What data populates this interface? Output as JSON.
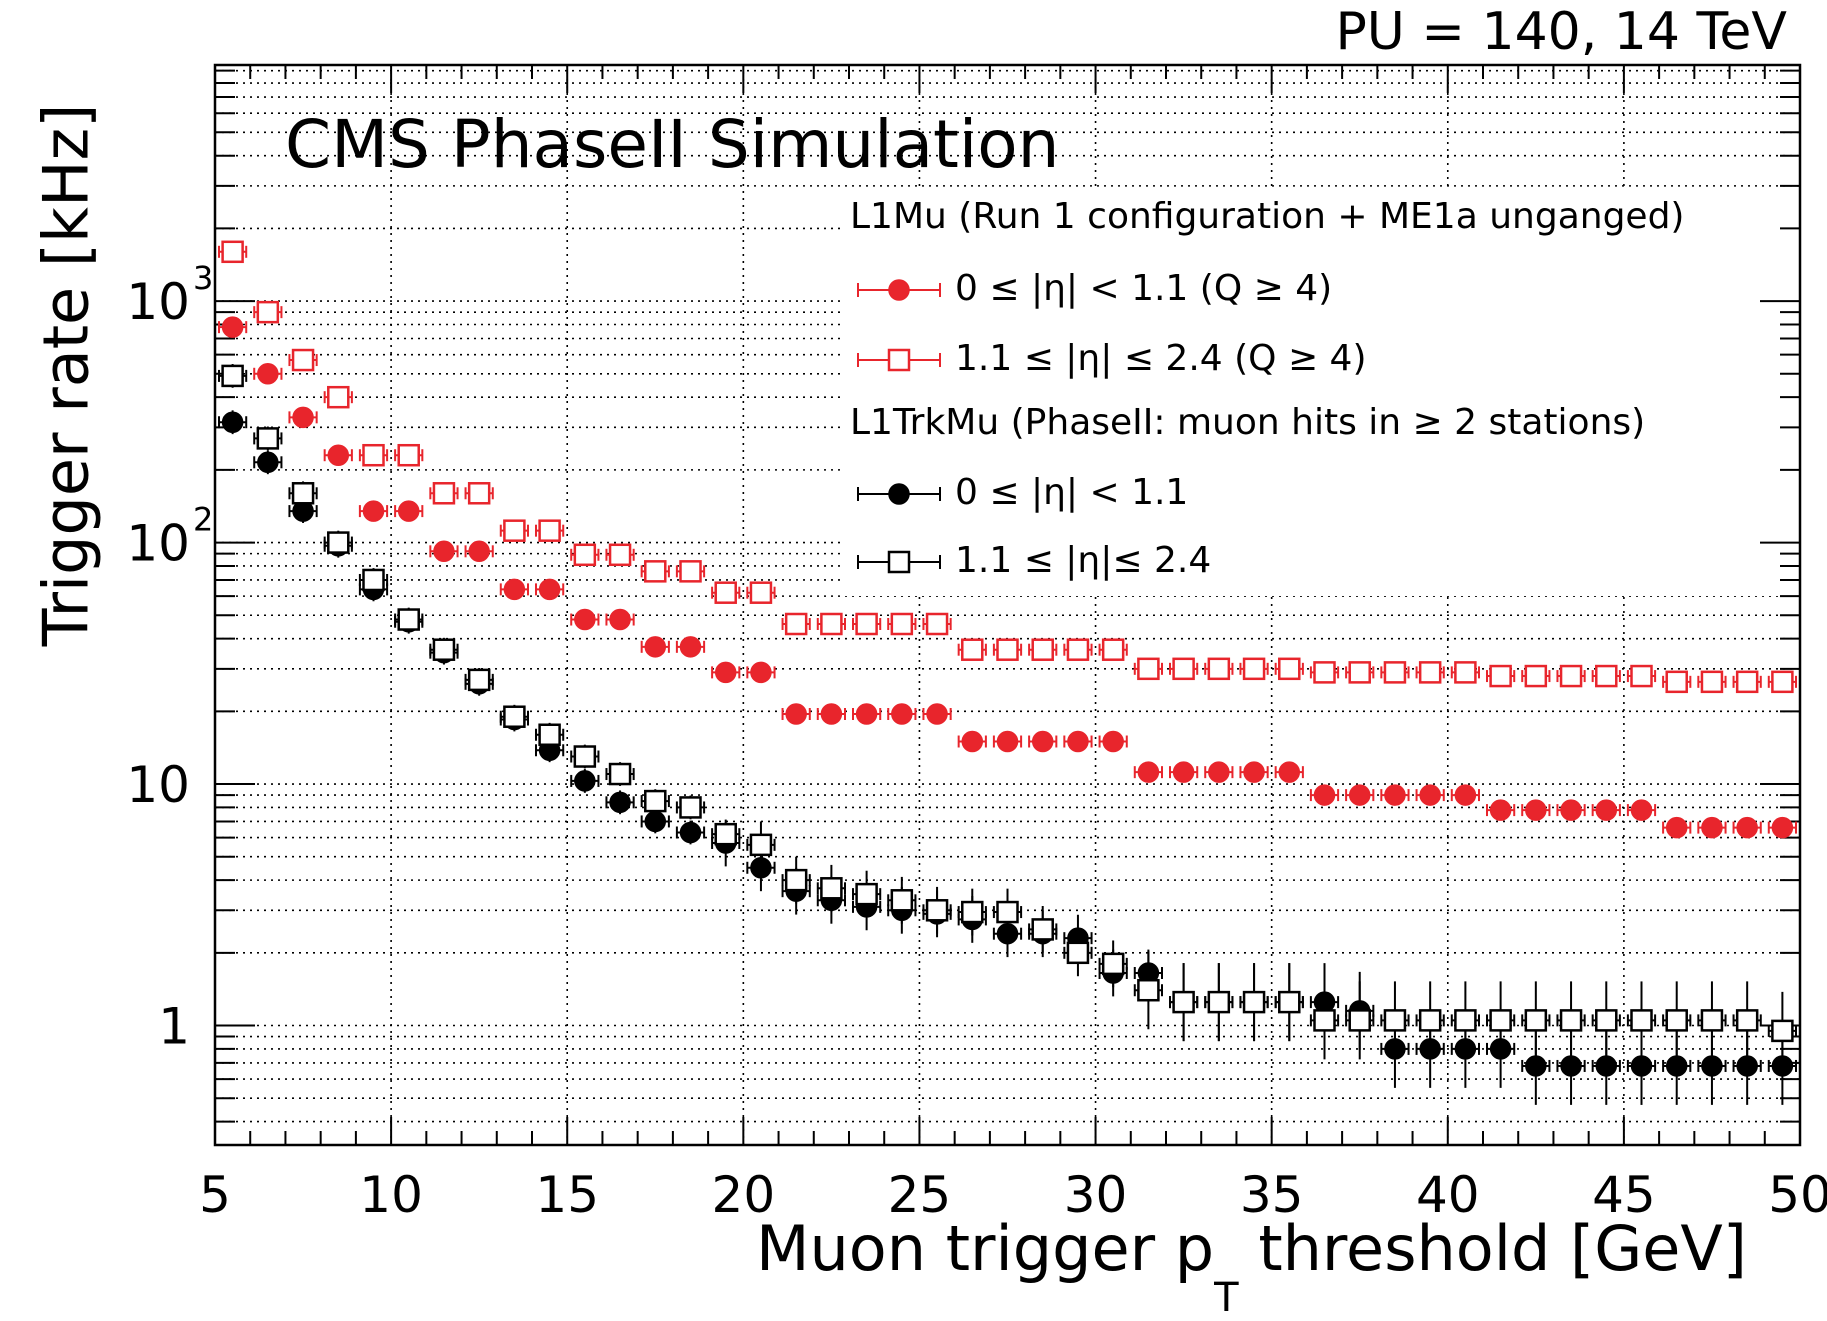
{
  "header": {
    "text": "PU = 140, 14 TeV"
  },
  "chart_data": {
    "type": "scatter",
    "title": "CMS PhaseII Simulation",
    "xlabel_main": "Muon trigger p",
    "xlabel_sub": "T",
    "xlabel_tail": " threshold [GeV]",
    "ylabel": "Trigger rate [kHz]",
    "xlim": [
      5,
      50
    ],
    "ylim": [
      0.32,
      9500
    ],
    "yscale": "log",
    "grid": true,
    "legend_position": "top-right",
    "x_ticks": [
      "5",
      "10",
      "15",
      "20",
      "25",
      "30",
      "35",
      "40",
      "45",
      "50"
    ],
    "y_tick_values": [
      1,
      10,
      100,
      1000
    ],
    "y_ticks": [
      "1",
      "10",
      "10",
      "10"
    ],
    "y_tick_exponents": [
      "",
      "",
      "2",
      "3"
    ],
    "legend_groups": [
      "L1Mu (Run 1 configuration + ME1a unganged)",
      "L1TrkMu (PhaseII: muon hits in ≥ 2 stations)"
    ],
    "series": [
      {
        "name": "0  ≤ |η| < 1.1  (Q ≥ 4)",
        "group": 0,
        "color": "#e8252c",
        "marker": "filled-circle",
        "x": [
          5.5,
          6.5,
          7.5,
          8.5,
          9.5,
          10.5,
          11.5,
          12.5,
          13.5,
          14.5,
          15.5,
          16.5,
          17.5,
          18.5,
          19.5,
          20.5,
          21.5,
          22.5,
          23.5,
          24.5,
          25.5,
          26.5,
          27.5,
          28.5,
          29.5,
          30.5,
          31.5,
          32.5,
          33.5,
          34.5,
          35.5,
          36.5,
          37.5,
          38.5,
          39.5,
          40.5,
          41.5,
          42.5,
          43.5,
          44.5,
          45.5,
          46.5,
          47.5,
          48.5,
          49.5
        ],
        "y": [
          780,
          500,
          330,
          230,
          135,
          135,
          92,
          92,
          64,
          64,
          48,
          48,
          37,
          37,
          29,
          29,
          19.5,
          19.5,
          19.5,
          19.5,
          19.5,
          15,
          15,
          15,
          15,
          15,
          11.2,
          11.2,
          11.2,
          11.2,
          11.2,
          9,
          9,
          9,
          9,
          9,
          7.8,
          7.8,
          7.8,
          7.8,
          7.8,
          6.6,
          6.6,
          6.6,
          6.6
        ]
      },
      {
        "name": "1.1 ≤ |η| ≤ 2.4 (Q ≥ 4)",
        "group": 0,
        "color": "#e8252c",
        "marker": "open-square",
        "x": [
          5.5,
          6.5,
          7.5,
          8.5,
          9.5,
          10.5,
          11.5,
          12.5,
          13.5,
          14.5,
          15.5,
          16.5,
          17.5,
          18.5,
          19.5,
          20.5,
          21.5,
          22.5,
          23.5,
          24.5,
          25.5,
          26.5,
          27.5,
          28.5,
          29.5,
          30.5,
          31.5,
          32.5,
          33.5,
          34.5,
          35.5,
          36.5,
          37.5,
          38.5,
          39.5,
          40.5,
          41.5,
          42.5,
          43.5,
          44.5,
          45.5,
          46.5,
          47.5,
          48.5,
          49.5
        ],
        "y": [
          1600,
          900,
          570,
          400,
          230,
          230,
          160,
          160,
          112,
          112,
          89,
          89,
          76,
          76,
          62,
          62,
          46,
          46,
          46,
          46,
          46,
          36,
          36,
          36,
          36,
          36,
          30,
          30,
          30,
          30,
          30,
          29,
          29,
          29,
          29,
          29,
          28,
          28,
          28,
          28,
          28,
          26.5,
          26.5,
          26.5,
          26.5
        ]
      },
      {
        "name": "0   ≤ |η| < 1.1",
        "group": 1,
        "color": "#000000",
        "marker": "filled-circle",
        "x": [
          5.5,
          6.5,
          7.5,
          8.5,
          9.5,
          10.5,
          11.5,
          12.5,
          13.5,
          14.5,
          15.5,
          16.5,
          17.5,
          18.5,
          19.5,
          20.5,
          21.5,
          22.5,
          23.5,
          24.5,
          25.5,
          26.5,
          27.5,
          28.5,
          29.5,
          30.5,
          31.5,
          32.5,
          33.5,
          34.5,
          35.5,
          36.5,
          37.5,
          38.5,
          39.5,
          40.5,
          41.5,
          42.5,
          43.5,
          44.5,
          45.5,
          46.5,
          47.5,
          48.5,
          49.5
        ],
        "y": [
          315,
          215,
          135,
          97,
          64,
          47,
          35,
          26,
          18.5,
          13.8,
          10.3,
          8.4,
          7,
          6.3,
          5.7,
          4.5,
          3.6,
          3.3,
          3.1,
          3,
          2.9,
          2.75,
          2.4,
          2.4,
          2.3,
          1.65,
          1.65,
          1.25,
          1.25,
          1.25,
          1.25,
          1.25,
          1.15,
          0.8,
          0.8,
          0.8,
          0.8,
          0.68,
          0.68,
          0.68,
          0.68,
          0.68,
          0.68,
          0.68,
          0.68
        ]
      },
      {
        "name": "1.1 ≤ |η|≤ 2.4",
        "group": 1,
        "color": "#000000",
        "marker": "open-square",
        "x": [
          5.5,
          6.5,
          7.5,
          8.5,
          9.5,
          10.5,
          11.5,
          12.5,
          13.5,
          14.5,
          15.5,
          16.5,
          17.5,
          18.5,
          19.5,
          20.5,
          21.5,
          22.5,
          23.5,
          24.5,
          25.5,
          26.5,
          27.5,
          28.5,
          29.5,
          30.5,
          31.5,
          32.5,
          33.5,
          34.5,
          35.5,
          36.5,
          37.5,
          38.5,
          39.5,
          40.5,
          41.5,
          42.5,
          43.5,
          44.5,
          45.5,
          46.5,
          47.5,
          48.5,
          49.5
        ],
        "y": [
          490,
          270,
          160,
          100,
          70,
          48,
          36,
          27,
          19,
          16,
          13,
          11,
          8.5,
          8,
          6.2,
          5.6,
          4,
          3.7,
          3.5,
          3.3,
          3,
          2.95,
          2.95,
          2.5,
          2,
          1.8,
          1.4,
          1.25,
          1.25,
          1.25,
          1.25,
          1.05,
          1.05,
          1.05,
          1.05,
          1.05,
          1.05,
          1.05,
          1.05,
          1.05,
          1.05,
          1.05,
          1.05,
          1.05,
          0.95
        ]
      }
    ]
  }
}
